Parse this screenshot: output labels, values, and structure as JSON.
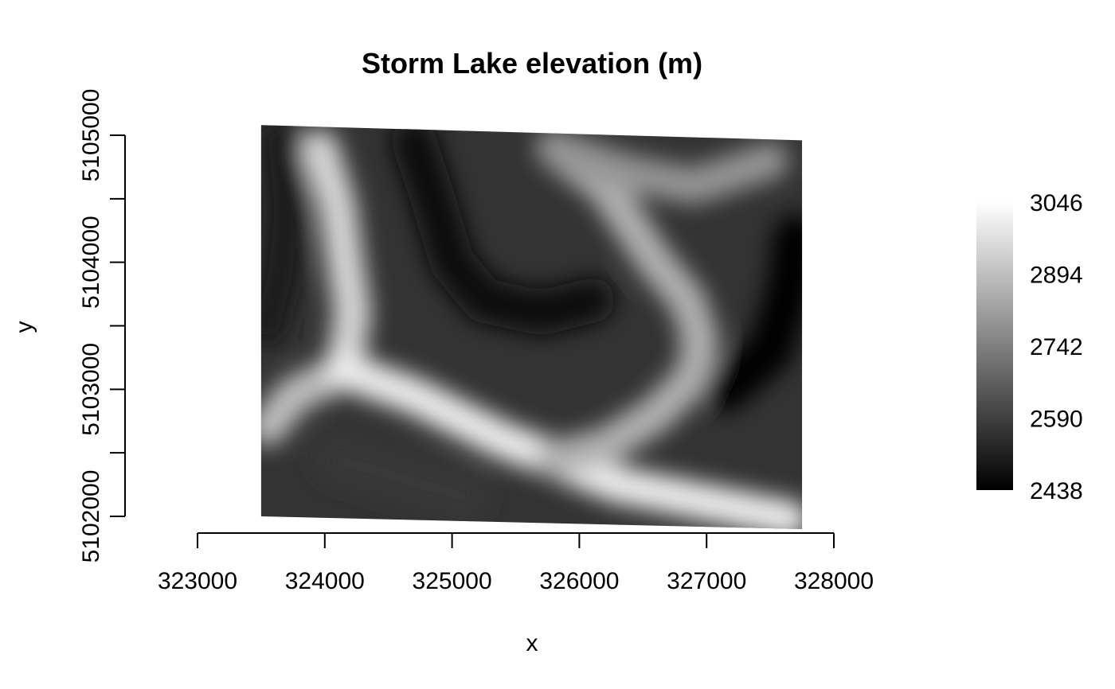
{
  "chart_data": {
    "type": "heatmap",
    "title": "Storm Lake elevation (m)",
    "xlabel": "x",
    "ylabel": "y",
    "xlim": [
      323000,
      328000
    ],
    "ylim": [
      5102000,
      5105000
    ],
    "x_ticks": [
      323000,
      324000,
      325000,
      326000,
      327000,
      328000
    ],
    "y_ticks": [
      5102000,
      5102500,
      5103000,
      5103500,
      5104000,
      5104500,
      5105000
    ],
    "y_tick_labels": [
      5102000,
      5103000,
      5104000,
      5105000
    ],
    "raster_extent": {
      "x": [
        323500,
        327750
      ],
      "y_bottom_left": 5102000,
      "y_bottom_right": 5101900,
      "y_top_left": 5105080,
      "y_top_right": 5104960
    },
    "color_scale": {
      "colors": [
        "#000000",
        "#ffffff"
      ],
      "min": 2438,
      "max": 3046,
      "labels": [
        2438,
        2590,
        2742,
        2894,
        3046
      ]
    },
    "grid": false,
    "legend": "right",
    "features": [
      {
        "kind": "ridge",
        "elevation": 2950,
        "points": [
          [
            323960,
            5104900
          ],
          [
            324100,
            5104450
          ],
          [
            324160,
            5104000
          ],
          [
            324220,
            5103600
          ],
          [
            324150,
            5103150
          ]
        ]
      },
      {
        "kind": "ridge",
        "elevation": 2890,
        "points": [
          [
            324150,
            5103150
          ],
          [
            323750,
            5102950
          ],
          [
            323550,
            5102700
          ]
        ]
      },
      {
        "kind": "ridge",
        "elevation": 3000,
        "points": [
          [
            324150,
            5103150
          ],
          [
            324700,
            5102950
          ],
          [
            325400,
            5102600
          ],
          [
            325800,
            5102450
          ],
          [
            326300,
            5102250
          ],
          [
            326800,
            5102150
          ],
          [
            327300,
            5102050
          ],
          [
            327650,
            5101980
          ]
        ]
      },
      {
        "kind": "ridge",
        "elevation": 2860,
        "points": [
          [
            325800,
            5102450
          ],
          [
            326200,
            5102550
          ],
          [
            326600,
            5102800
          ],
          [
            326900,
            5103100
          ],
          [
            326950,
            5103400
          ],
          [
            326850,
            5103700
          ],
          [
            326600,
            5104000
          ],
          [
            326400,
            5104300
          ],
          [
            326200,
            5104600
          ],
          [
            325800,
            5104900
          ]
        ]
      },
      {
        "kind": "ridge",
        "elevation": 2790,
        "points": [
          [
            325800,
            5104900
          ],
          [
            326400,
            5104700
          ],
          [
            326900,
            5104600
          ],
          [
            327500,
            5104800
          ]
        ]
      },
      {
        "kind": "valley",
        "elevation": 2500,
        "points": [
          [
            323650,
            5104950
          ],
          [
            323700,
            5104400
          ],
          [
            323650,
            5103900
          ],
          [
            323550,
            5103500
          ]
        ]
      },
      {
        "kind": "valley",
        "elevation": 2460,
        "points": [
          [
            324700,
            5104950
          ],
          [
            324850,
            5104500
          ],
          [
            325000,
            5104000
          ],
          [
            325250,
            5103700
          ],
          [
            325700,
            5103600
          ],
          [
            326100,
            5103700
          ]
        ]
      },
      {
        "kind": "valley",
        "elevation": 2440,
        "points": [
          [
            327700,
            5104200
          ],
          [
            327650,
            5103800
          ],
          [
            327500,
            5103300
          ],
          [
            327150,
            5103000
          ]
        ]
      },
      {
        "kind": "valley",
        "elevation": 2570,
        "points": [
          [
            324100,
            5102450
          ],
          [
            324600,
            5102300
          ],
          [
            325100,
            5102150
          ]
        ]
      }
    ]
  }
}
